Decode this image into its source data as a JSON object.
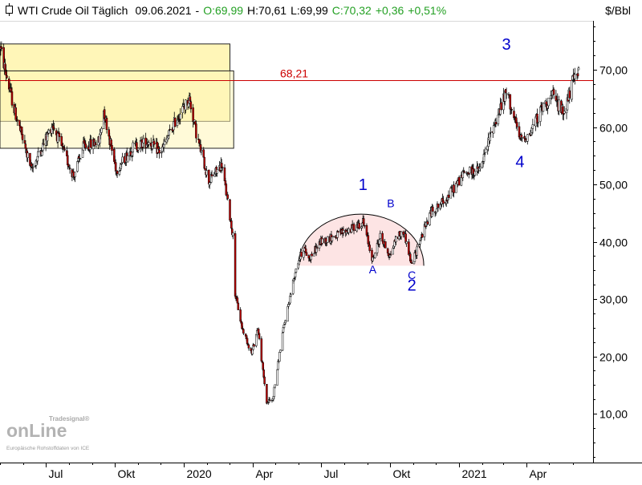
{
  "header": {
    "title": "WTI Crude Oil Täglich",
    "date": "09.06.2021",
    "separator": "-",
    "open": "O:69,99",
    "high": "H:70,61",
    "low": "L:69,99",
    "close": "C:70,32",
    "change": "+0,36",
    "change_pct": "+0,51%"
  },
  "unit_label": "$/Bbl",
  "logo": {
    "brand_small": "Tradesignal®",
    "brand_main": "onLine",
    "source_note": "Europäische Rohstoffdaten von ICE"
  },
  "colors": {
    "up_candle": "#ffffff",
    "down_candle": "#c00000",
    "resistance_line": "#cc0000",
    "box_fill": "#fff6b8",
    "arc_fill": "#fde4e4",
    "wave_label": "#0000cc",
    "green_text": "#23a023"
  },
  "chart_data": {
    "type": "candlestick",
    "instrument": "WTI Crude Oil",
    "timeframe": "daily",
    "unit": "$/Bbl",
    "ylim": [
      0,
      80
    ],
    "y_ticks": [
      "10,00",
      "20,00",
      "30,00",
      "40,00",
      "50,00",
      "60,00",
      "70,00"
    ],
    "y_tick_values": [
      10,
      20,
      30,
      40,
      50,
      60,
      70
    ],
    "x_ticks": [
      {
        "label": "Jul",
        "date": "2019-07-01"
      },
      {
        "label": "Okt",
        "date": "2019-10-01"
      },
      {
        "label": "2020",
        "date": "2020-01-01"
      },
      {
        "label": "Apr",
        "date": "2020-04-01"
      },
      {
        "label": "Jul",
        "date": "2020-07-01"
      },
      {
        "label": "Okt",
        "date": "2020-10-01"
      },
      {
        "label": "2021",
        "date": "2021-01-01"
      },
      {
        "label": "Apr",
        "date": "2021-04-01"
      }
    ],
    "x_range": [
      "2019-05-01",
      "2021-06-09"
    ],
    "price_path": [
      [
        "2019-05-01",
        74.0
      ],
      [
        "2019-05-20",
        63.0
      ],
      [
        "2019-06-12",
        52.5
      ],
      [
        "2019-07-10",
        60.5
      ],
      [
        "2019-07-25",
        55.5
      ],
      [
        "2019-08-07",
        51.5
      ],
      [
        "2019-08-20",
        56.5
      ],
      [
        "2019-09-10",
        57.5
      ],
      [
        "2019-09-16",
        63.0
      ],
      [
        "2019-09-30",
        54.0
      ],
      [
        "2019-10-03",
        52.5
      ],
      [
        "2019-10-25",
        56.5
      ],
      [
        "2019-11-15",
        57.5
      ],
      [
        "2019-12-01",
        55.5
      ],
      [
        "2019-12-20",
        61.0
      ],
      [
        "2020-01-08",
        65.0
      ],
      [
        "2020-01-17",
        59.0
      ],
      [
        "2020-02-03",
        50.5
      ],
      [
        "2020-02-20",
        53.5
      ],
      [
        "2020-03-06",
        41.0
      ],
      [
        "2020-03-09",
        31.0
      ],
      [
        "2020-03-18",
        25.0
      ],
      [
        "2020-03-31",
        20.5
      ],
      [
        "2020-04-08",
        25.0
      ],
      [
        "2020-04-20",
        12.0
      ],
      [
        "2020-04-28",
        12.5
      ],
      [
        "2020-05-11",
        24.0
      ],
      [
        "2020-05-29",
        35.5
      ],
      [
        "2020-06-08",
        39.0
      ],
      [
        "2020-06-15",
        37.0
      ],
      [
        "2020-07-01",
        40.0
      ],
      [
        "2020-07-20",
        41.0
      ],
      [
        "2020-08-15",
        42.5
      ],
      [
        "2020-08-26",
        43.5
      ],
      [
        "2020-09-08",
        36.8
      ],
      [
        "2020-09-18",
        41.0
      ],
      [
        "2020-10-01",
        37.5
      ],
      [
        "2020-10-10",
        41.0
      ],
      [
        "2020-10-20",
        41.5
      ],
      [
        "2020-10-30",
        35.8
      ],
      [
        "2020-11-09",
        40.0
      ],
      [
        "2020-11-24",
        45.0
      ],
      [
        "2020-12-15",
        47.5
      ],
      [
        "2021-01-08",
        52.0
      ],
      [
        "2021-01-29",
        52.5
      ],
      [
        "2021-02-15",
        60.0
      ],
      [
        "2021-03-05",
        66.0
      ],
      [
        "2021-03-08",
        65.0
      ],
      [
        "2021-03-23",
        57.8
      ],
      [
        "2021-04-05",
        58.7
      ],
      [
        "2021-04-20",
        63.0
      ],
      [
        "2021-05-05",
        65.5
      ],
      [
        "2021-05-20",
        62.5
      ],
      [
        "2021-06-01",
        67.7
      ],
      [
        "2021-06-09",
        70.32
      ]
    ],
    "last_bar": {
      "date": "2021-06-09",
      "open": 69.99,
      "high": 70.61,
      "low": 69.99,
      "close": 70.32
    },
    "resistance": {
      "value": 68.21,
      "label": "68,21"
    },
    "consolidation_box": {
      "high": 74.5,
      "low": 61.0,
      "start": "2019-05-01",
      "end": "2020-03-02"
    },
    "inner_box": {
      "high": 69.8,
      "low": 56.3,
      "start": "2019-05-01",
      "end": "2020-03-07"
    },
    "rounded_top": {
      "start": "2020-06-01",
      "end": "2020-11-15",
      "base": 35.8,
      "peak": 44.8
    },
    "wave_labels": [
      {
        "text": "1",
        "date": "2020-08-26",
        "anchor_price": 49.0
      },
      {
        "text": "2",
        "date": "2020-10-30",
        "anchor_price": 31.5
      },
      {
        "text": "3",
        "date": "2021-03-05",
        "anchor_price": 73.5
      },
      {
        "text": "4",
        "date": "2021-03-23",
        "anchor_price": 53.0
      }
    ],
    "correction_labels": [
      {
        "text": "A",
        "date": "2020-09-08",
        "anchor_price": 34.5
      },
      {
        "text": "B",
        "date": "2020-10-02",
        "anchor_price": 46.0
      },
      {
        "text": "C",
        "date": "2020-10-30",
        "anchor_price": 33.5
      }
    ]
  }
}
